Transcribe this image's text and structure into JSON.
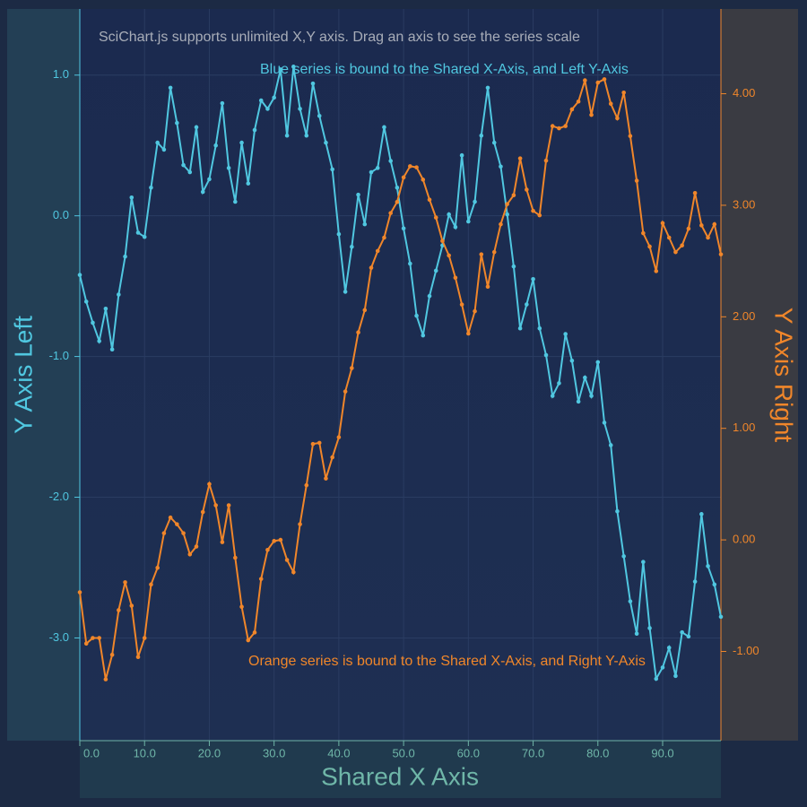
{
  "chart_data": {
    "type": "line",
    "title": "SciChart.js supports unlimited X,Y axis. Drag an axis to see the series scale",
    "annotations": [
      {
        "text": "Blue series is bound to the Shared X-Axis, and Left Y-Axis",
        "color": "#50c7e0"
      },
      {
        "text": "Orange series is bound to the Shared X-Axis, and Right Y-Axis",
        "color": "#f0862a"
      }
    ],
    "x_label": "Shared X Axis",
    "y_label": "Y Axis Left",
    "y2_label": "Y Axis Right",
    "x": [
      0,
      1,
      2,
      3,
      4,
      5,
      6,
      7,
      8,
      9,
      10,
      11,
      12,
      13,
      14,
      15,
      16,
      17,
      18,
      19,
      20,
      21,
      22,
      23,
      24,
      25,
      26,
      27,
      28,
      29,
      30,
      31,
      32,
      33,
      34,
      35,
      36,
      37,
      38,
      39,
      40,
      41,
      42,
      43,
      44,
      45,
      46,
      47,
      48,
      49,
      50,
      51,
      52,
      53,
      54,
      55,
      56,
      57,
      58,
      59,
      60,
      61,
      62,
      63,
      64,
      65,
      66,
      67,
      68,
      69,
      70,
      71,
      72,
      73,
      74,
      75,
      76,
      77,
      78,
      79,
      80,
      81,
      82,
      83,
      84,
      85,
      86,
      87,
      88,
      89,
      90,
      91,
      92,
      93,
      94,
      95,
      96,
      97,
      98,
      99
    ],
    "series": [
      {
        "color": "#50c7e0",
        "axis": "y",
        "values": [
          -0.42,
          -0.61,
          -0.76,
          -0.89,
          -0.66,
          -0.95,
          -0.56,
          -0.29,
          0.13,
          -0.12,
          -0.15,
          0.2,
          0.52,
          0.47,
          0.91,
          0.66,
          0.36,
          0.31,
          0.63,
          0.17,
          0.26,
          0.5,
          0.8,
          0.34,
          0.1,
          0.52,
          0.23,
          0.61,
          0.82,
          0.76,
          0.84,
          1.04,
          0.57,
          1.06,
          0.76,
          0.57,
          0.94,
          0.71,
          0.52,
          0.33,
          -0.13,
          -0.54,
          -0.22,
          0.15,
          -0.06,
          0.31,
          0.34,
          0.63,
          0.39,
          0.2,
          -0.09,
          -0.34,
          -0.71,
          -0.85,
          -0.57,
          -0.39,
          -0.21,
          0.01,
          -0.08,
          0.43,
          -0.04,
          0.1,
          0.57,
          0.91,
          0.52,
          0.35,
          0.01,
          -0.36,
          -0.8,
          -0.63,
          -0.45,
          -0.8,
          -0.99,
          -1.28,
          -1.19,
          -0.84,
          -1.03,
          -1.32,
          -1.15,
          -1.28,
          -1.04,
          -1.47,
          -1.63,
          -2.1,
          -2.42,
          -2.74,
          -2.97,
          -2.46,
          -2.93,
          -3.29,
          -3.21,
          -3.07,
          -3.27,
          -2.96,
          -2.99,
          -2.6,
          -2.12,
          -2.49,
          -2.62,
          -2.85
        ]
      },
      {
        "color": "#f0862a",
        "axis": "y2",
        "values": [
          -0.47,
          -0.93,
          -0.88,
          -0.88,
          -1.25,
          -1.03,
          -0.63,
          -0.38,
          -0.59,
          -1.05,
          -0.88,
          -0.4,
          -0.25,
          0.06,
          0.2,
          0.14,
          0.06,
          -0.13,
          -0.06,
          0.25,
          0.5,
          0.31,
          -0.02,
          0.31,
          -0.16,
          -0.6,
          -0.9,
          -0.83,
          -0.35,
          -0.09,
          -0.01,
          0.0,
          -0.18,
          -0.29,
          0.14,
          0.49,
          0.86,
          0.87,
          0.55,
          0.74,
          0.92,
          1.33,
          1.54,
          1.86,
          2.06,
          2.44,
          2.59,
          2.71,
          2.93,
          3.03,
          3.25,
          3.35,
          3.34,
          3.23,
          3.05,
          2.89,
          2.68,
          2.55,
          2.35,
          2.11,
          1.85,
          2.05,
          2.56,
          2.27,
          2.58,
          2.83,
          3.01,
          3.09,
          3.42,
          3.14,
          2.95,
          2.91,
          3.4,
          3.71,
          3.69,
          3.71,
          3.86,
          3.93,
          4.12,
          3.81,
          4.1,
          4.13,
          3.91,
          3.78,
          4.01,
          3.62,
          3.22,
          2.75,
          2.63,
          2.41,
          2.84,
          2.71,
          2.58,
          2.64,
          2.79,
          3.11,
          2.82,
          2.71,
          2.83,
          2.56
        ]
      }
    ],
    "xlim": [
      0,
      99
    ],
    "ylim": [
      -3.73,
      1.47
    ],
    "y2lim": [
      -1.8,
      4.76
    ],
    "xticks": [
      {
        "value": 0,
        "label": "0.0"
      },
      {
        "value": 10,
        "label": "10.0"
      },
      {
        "value": 20,
        "label": "20.0"
      },
      {
        "value": 30,
        "label": "30.0"
      },
      {
        "value": 40,
        "label": "40.0"
      },
      {
        "value": 50,
        "label": "50.0"
      },
      {
        "value": 60,
        "label": "60.0"
      },
      {
        "value": 70,
        "label": "70.0"
      },
      {
        "value": 80,
        "label": "80.0"
      },
      {
        "value": 90,
        "label": "90.0"
      }
    ],
    "yticks": [
      {
        "value": -3,
        "label": "-3.0"
      },
      {
        "value": -2,
        "label": "-2.0"
      },
      {
        "value": -1,
        "label": "-1.0"
      },
      {
        "value": 0,
        "label": "0.0"
      },
      {
        "value": 1,
        "label": "1.0"
      }
    ],
    "y2ticks": [
      {
        "value": -1,
        "label": "-1.00"
      },
      {
        "value": 0,
        "label": "0.00"
      },
      {
        "value": 1,
        "label": "1.00"
      },
      {
        "value": 2,
        "label": "2.00"
      },
      {
        "value": 3,
        "label": "3.00"
      },
      {
        "value": 4,
        "label": "4.00"
      }
    ],
    "grid": true
  }
}
